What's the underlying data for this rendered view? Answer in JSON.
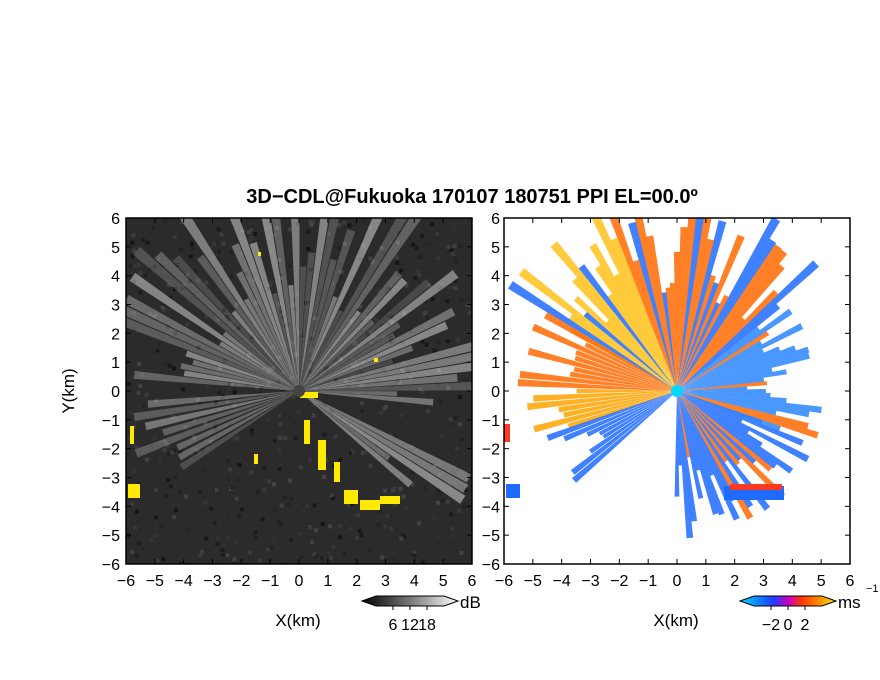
{
  "title": "3D−CDL@Fukuoka 170107 180751 PPI EL=00.0º",
  "colors": {
    "reflectivity_background": "#2b2b2b",
    "reflectivity_beams": "#ffffff",
    "velocity_away": "#ff6a00",
    "velocity_toward": "#1f6bff",
    "clutter": "#ffea00",
    "radar_site": "#00d8ff"
  },
  "chart_data": [
    {
      "type": "heatmap",
      "name": "reflectivity_ppi",
      "xlabel": "X(km)",
      "ylabel": "Y(km)",
      "xlim": [
        -6,
        6
      ],
      "ylim": [
        -6,
        6
      ],
      "x_ticks": [
        "−6",
        "−5",
        "−4",
        "−3",
        "−2",
        "−1",
        "0",
        "1",
        "2",
        "3",
        "4",
        "5",
        "6"
      ],
      "y_ticks": [
        "6",
        "5",
        "4",
        "3",
        "2",
        "1",
        "0",
        "−1",
        "−2",
        "−3",
        "−4",
        "−5",
        "−6"
      ],
      "colorbar": {
        "unit": "dB",
        "ticks": [
          "6",
          "12",
          "18"
        ],
        "range": [
          0,
          24
        ]
      },
      "radar_position": [
        0,
        0
      ]
    },
    {
      "type": "heatmap",
      "name": "doppler_velocity_ppi",
      "xlabel": "X(km)",
      "ylabel": "",
      "xlim": [
        -6,
        6
      ],
      "ylim": [
        -6,
        6
      ],
      "x_ticks": [
        "−6",
        "−5",
        "−4",
        "−3",
        "−2",
        "−1",
        "0",
        "1",
        "2",
        "3",
        "4",
        "5",
        "6"
      ],
      "y_ticks": [
        "6",
        "5",
        "4",
        "3",
        "2",
        "1",
        "0",
        "−1",
        "−2",
        "−3",
        "−4",
        "−5",
        "−6"
      ],
      "colorbar": {
        "unit": "ms",
        "unit_exponent": "−1",
        "ticks": [
          "−2",
          "0",
          "2"
        ],
        "range": [
          -4,
          4
        ]
      },
      "radar_position": [
        0,
        0
      ]
    }
  ]
}
